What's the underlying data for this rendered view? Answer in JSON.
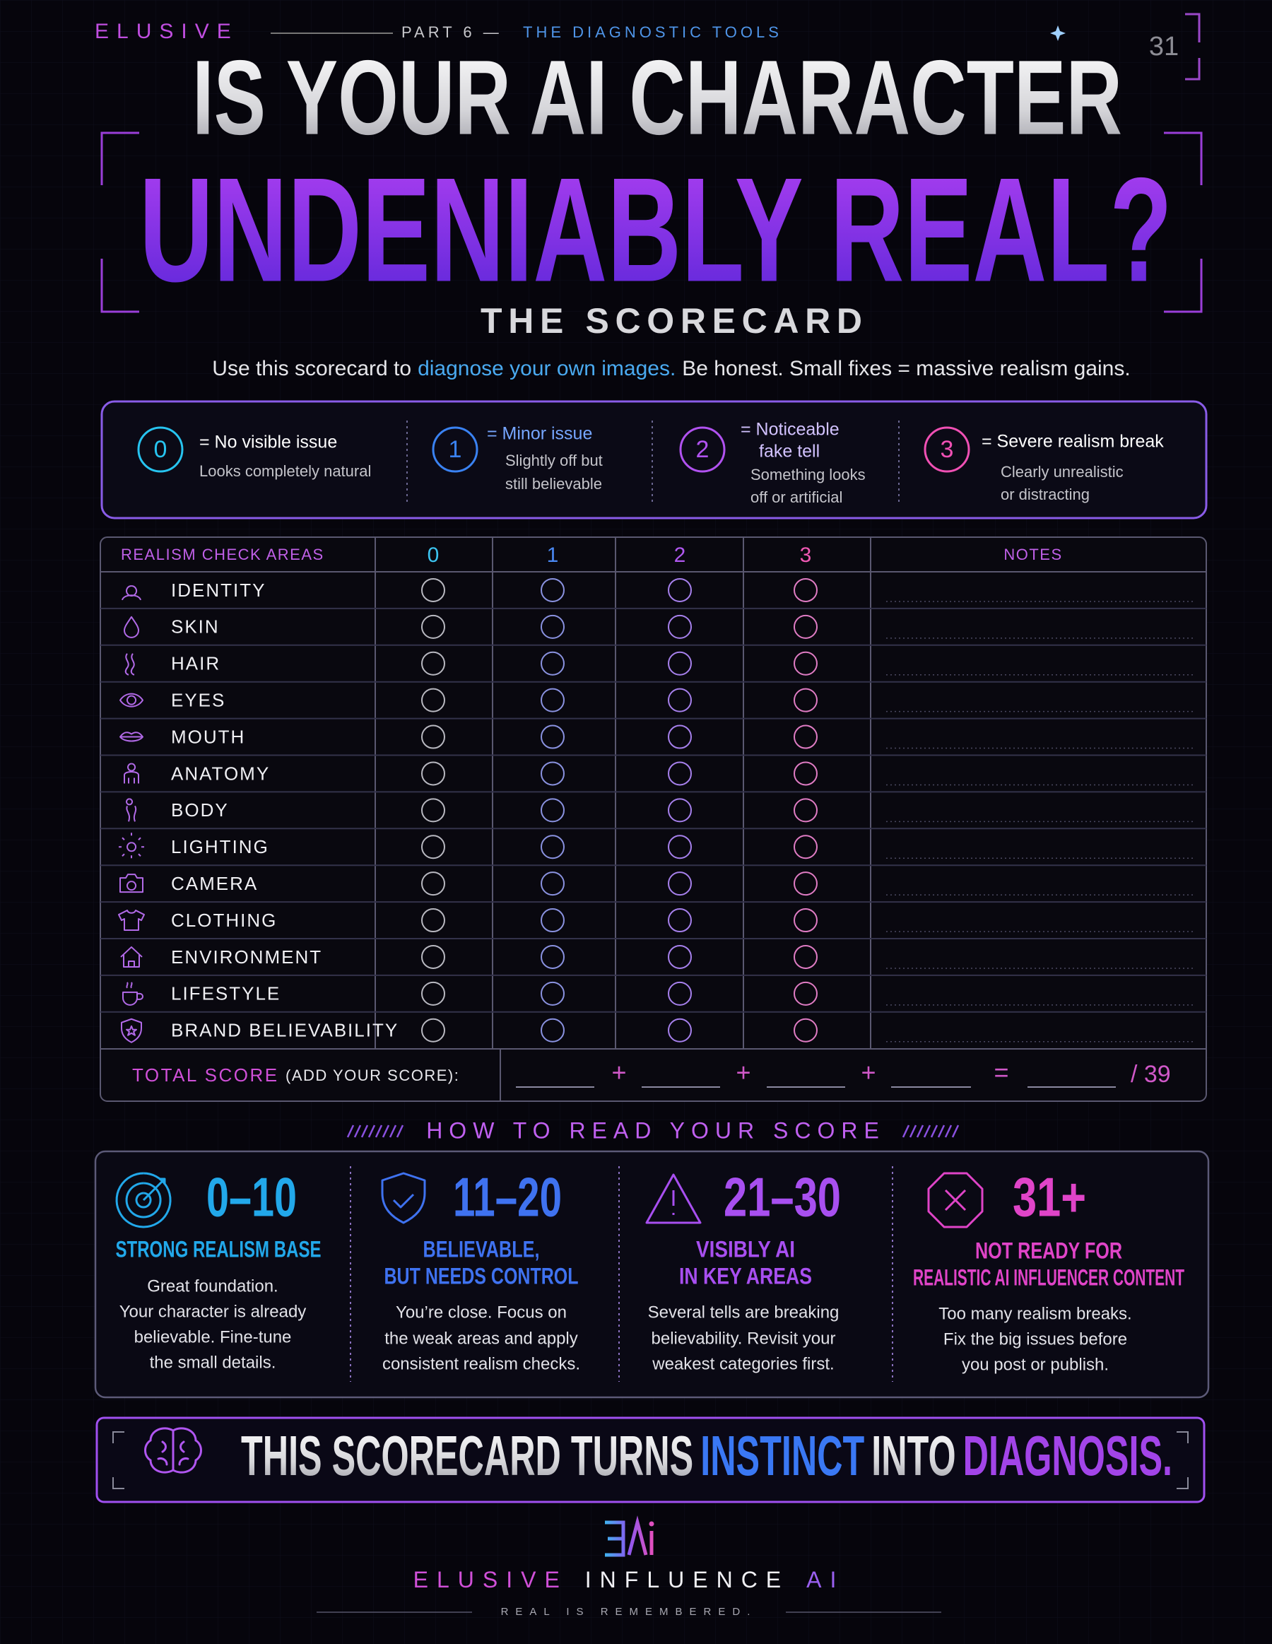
{
  "header": {
    "brand": "ELUSIVE",
    "part": "PART 6 —",
    "section": "THE DIAGNOSTIC TOOLS",
    "page_number": "31",
    "title_line1": "IS YOUR AI CHARACTER",
    "title_line2": "UNDENIABLY REAL?",
    "subtitle": "THE SCORECARD"
  },
  "intro": {
    "lead": "Use this scorecard to",
    "highlight": "diagnose your own images.",
    "tail": "Be honest. Small fixes = massive realism gains."
  },
  "legend": [
    {
      "score": "0",
      "label": [
        "= No visible issue"
      ],
      "description": [
        "Looks completely natural"
      ]
    },
    {
      "score": "1",
      "label": [
        "= Minor issue"
      ],
      "description": [
        "Slightly off but",
        "still believable"
      ]
    },
    {
      "score": "2",
      "label": [
        "= Noticeable",
        "fake tell"
      ],
      "description": [
        "Something looks",
        "off or artificial"
      ]
    },
    {
      "score": "3",
      "label": [
        "= Severe realism break"
      ],
      "description": [
        "Clearly unrealistic",
        "or distracting"
      ]
    }
  ],
  "table": {
    "area_header": "REALISM CHECK AREAS",
    "score_columns": [
      "0",
      "1",
      "2",
      "3"
    ],
    "notes_header": "NOTES",
    "rows": [
      "IDENTITY",
      "SKIN",
      "HAIR",
      "EYES",
      "MOUTH",
      "ANATOMY",
      "BODY",
      "LIGHTING",
      "CAMERA",
      "CLOTHING",
      "ENVIRONMENT",
      "LIFESTYLE",
      "BRAND BELIEVABILITY"
    ],
    "total_label": "TOTAL SCORE",
    "total_hint": "(ADD YOUR SCORE):",
    "plus": "+",
    "equals": "=",
    "max": "/ 39"
  },
  "score_guide": {
    "title": "HOW TO READ YOUR SCORE",
    "bands": [
      {
        "range": "0–10",
        "heading": [
          "STRONG REALISM BASE"
        ],
        "text": [
          "Great foundation.",
          "Your character is already",
          "believable. Fine-tune",
          "the small details."
        ]
      },
      {
        "range": "11–20",
        "heading": [
          "BELIEVABLE,",
          "BUT NEEDS CONTROL"
        ],
        "text": [
          "You’re close. Focus on",
          "the weak areas and apply",
          "consistent realism checks."
        ]
      },
      {
        "range": "21–30",
        "heading": [
          "VISIBLY AI",
          "IN KEY AREAS"
        ],
        "text": [
          "Several tells are breaking",
          "believability. Revisit your",
          "weakest categories first."
        ]
      },
      {
        "range": "31+",
        "heading": [
          "NOT READY FOR",
          "REALISTIC AI INFLUENCER CONTENT"
        ],
        "text": [
          "Too many realism breaks.",
          "Fix the big issues before",
          "you post or publish."
        ]
      }
    ]
  },
  "banner": {
    "lead": "THIS SCORECARD TURNS",
    "highlight1": "INSTINCT",
    "middle": "INTO",
    "highlight2": "DIAGNOSIS."
  },
  "footer": {
    "brand1": "ELUSIVE",
    "brand2": "INFLUENCE",
    "brand3": "AI",
    "tagline": "REAL IS REMEMBERED."
  }
}
